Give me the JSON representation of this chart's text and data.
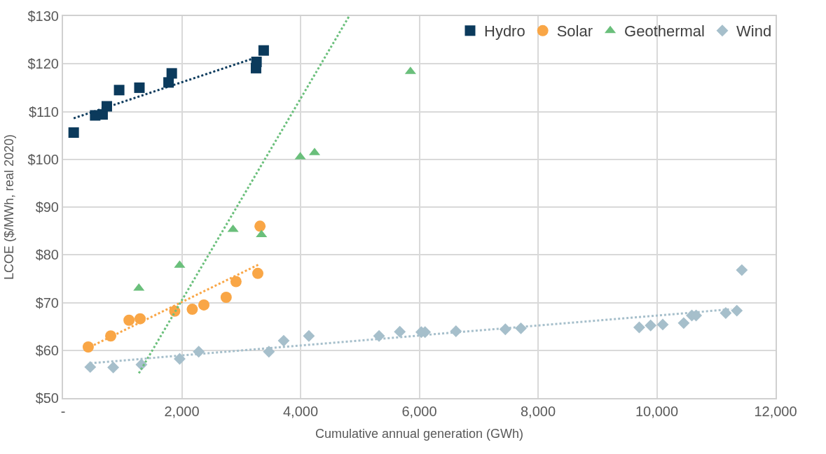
{
  "chart_data": {
    "type": "scatter",
    "xlabel": "Cumulative annual generation (GWh)",
    "ylabel": "LCOE ($/MWh, real 2020)",
    "xlim": [
      0,
      12000
    ],
    "ylim": [
      50,
      130
    ],
    "xticks": [
      {
        "value": 0,
        "label": "-"
      },
      {
        "value": 2000,
        "label": "2,000"
      },
      {
        "value": 4000,
        "label": "4,000"
      },
      {
        "value": 6000,
        "label": "6,000"
      },
      {
        "value": 8000,
        "label": "8,000"
      },
      {
        "value": 10000,
        "label": "10,000"
      },
      {
        "value": 12000,
        "label": "12,000"
      }
    ],
    "yticks": [
      {
        "value": 50,
        "label": "$50"
      },
      {
        "value": 60,
        "label": "$60"
      },
      {
        "value": 70,
        "label": "$70"
      },
      {
        "value": 80,
        "label": "$80"
      },
      {
        "value": 90,
        "label": "$90"
      },
      {
        "value": 100,
        "label": "$100"
      },
      {
        "value": 110,
        "label": "$110"
      },
      {
        "value": 120,
        "label": "$120"
      },
      {
        "value": 130,
        "label": "$130"
      }
    ],
    "grid": true,
    "legend": "top right",
    "series": [
      {
        "name": "Hydro",
        "color": "#0b3a5c",
        "marker": "square",
        "x": [
          179,
          541,
          666,
          737,
          945,
          1286,
          1777,
          1831,
          3250,
          3258,
          3379
        ],
        "values": [
          105.6,
          109.2,
          109.4,
          111.1,
          114.5,
          115.0,
          116.1,
          118.0,
          119.1,
          120.4,
          122.8
        ]
      },
      {
        "name": "Solar",
        "color": "#f9a646",
        "marker": "circle",
        "x": [
          424,
          803,
          1111,
          1298,
          1881,
          2176,
          2372,
          2747,
          2913,
          3280,
          3317
        ],
        "values": [
          60.7,
          63.0,
          66.3,
          66.6,
          68.2,
          68.6,
          69.5,
          71.1,
          74.4,
          76.1,
          86.0
        ]
      },
      {
        "name": "Geothermal",
        "color": "#6abf7b",
        "marker": "triangle",
        "x": [
          1277,
          1964,
          2863,
          3342,
          3995,
          4236,
          5851
        ],
        "values": [
          73.0,
          77.8,
          85.3,
          84.2,
          100.5,
          101.4,
          118.4
        ]
      },
      {
        "name": "Wind",
        "color": "#a6bfcb",
        "marker": "diamond",
        "x": [
          458,
          845,
          1320,
          1964,
          2285,
          3467,
          3716,
          4140,
          5322,
          5672,
          6034,
          6097,
          6617,
          7449,
          7711,
          9704,
          9896,
          10100,
          10453,
          10590,
          10662,
          11161,
          11348,
          11432
        ],
        "values": [
          56.5,
          56.4,
          57.0,
          58.2,
          59.7,
          59.7,
          62.0,
          63.0,
          63.0,
          63.9,
          63.8,
          63.8,
          64.0,
          64.4,
          64.6,
          64.8,
          65.2,
          65.4,
          65.7,
          67.3,
          67.3,
          67.8,
          68.3,
          76.8
        ]
      },
      {
        "type": "line",
        "color": "#0b3a5c",
        "marker": "none",
        "line_style": "dotted",
        "x": [
          179,
          3221
        ],
        "values": [
          108.6,
          121.2
        ]
      },
      {
        "type": "line",
        "color": "#f9a646",
        "marker": "none",
        "line_style": "dotted",
        "x": [
          520,
          3317
        ],
        "values": [
          61.1,
          78.1
        ]
      },
      {
        "type": "line",
        "color": "#6abf7b",
        "marker": "none",
        "line_style": "dotted",
        "x": [
          1277,
          4819
        ],
        "values": [
          55.2,
          130
        ]
      },
      {
        "type": "line",
        "color": "#a6bfcb",
        "marker": "none",
        "line_style": "dotted",
        "x": [
          458,
          11257
        ],
        "values": [
          57.3,
          68.6
        ]
      }
    ]
  }
}
